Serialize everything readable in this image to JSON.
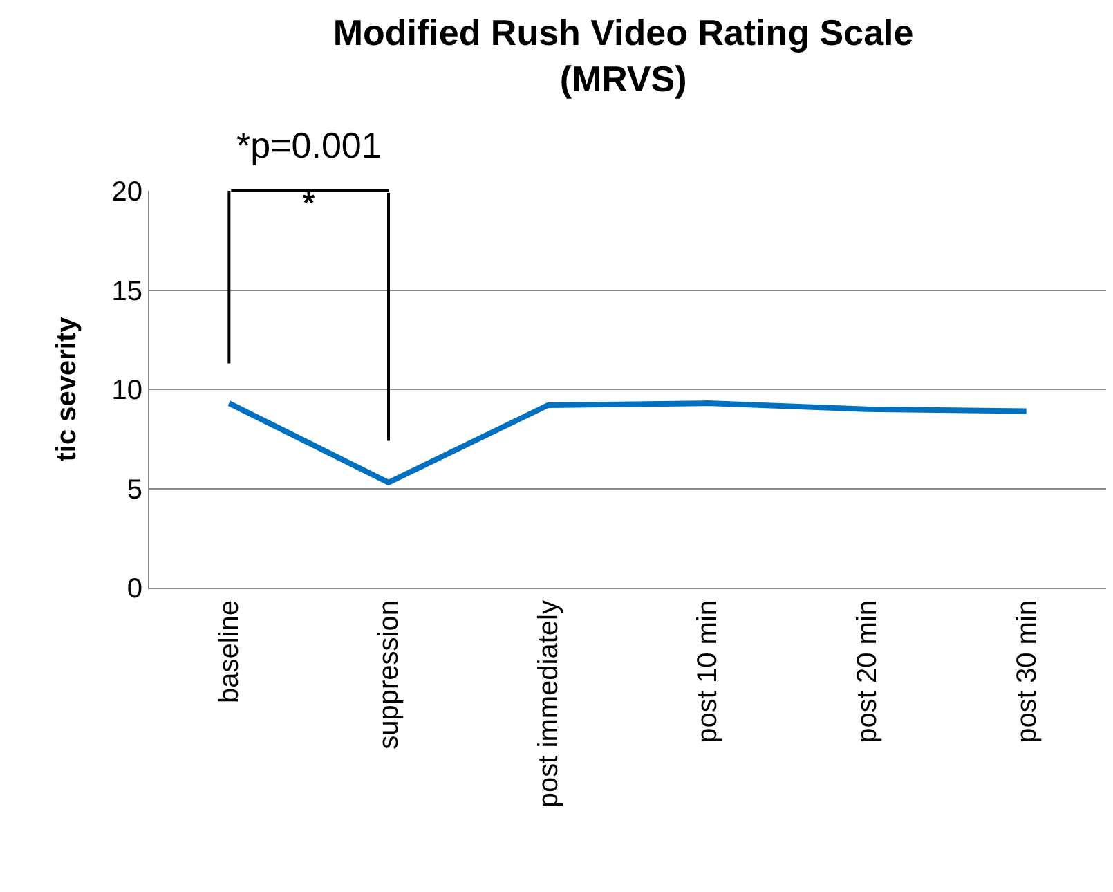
{
  "chart_data": {
    "type": "line",
    "title": "Modified Rush Video Rating Scale (MRVS)",
    "ylabel": "tic severity",
    "categories": [
      "baseline",
      "suppression",
      "post immediately",
      "post 10 min",
      "post 20 min",
      "post 30 min"
    ],
    "series": [
      {
        "color": "#0070c0",
        "values": [
          9.3,
          5.3,
          9.2,
          9.3,
          9.0,
          8.9
        ]
      }
    ],
    "ylim": [
      0,
      20
    ],
    "yticks": [
      0,
      5,
      10,
      15,
      20
    ],
    "grid": "y",
    "legend": false,
    "marker": "none",
    "line_style": "solid",
    "annotations": [
      "*p=0.001",
      "*"
    ]
  }
}
